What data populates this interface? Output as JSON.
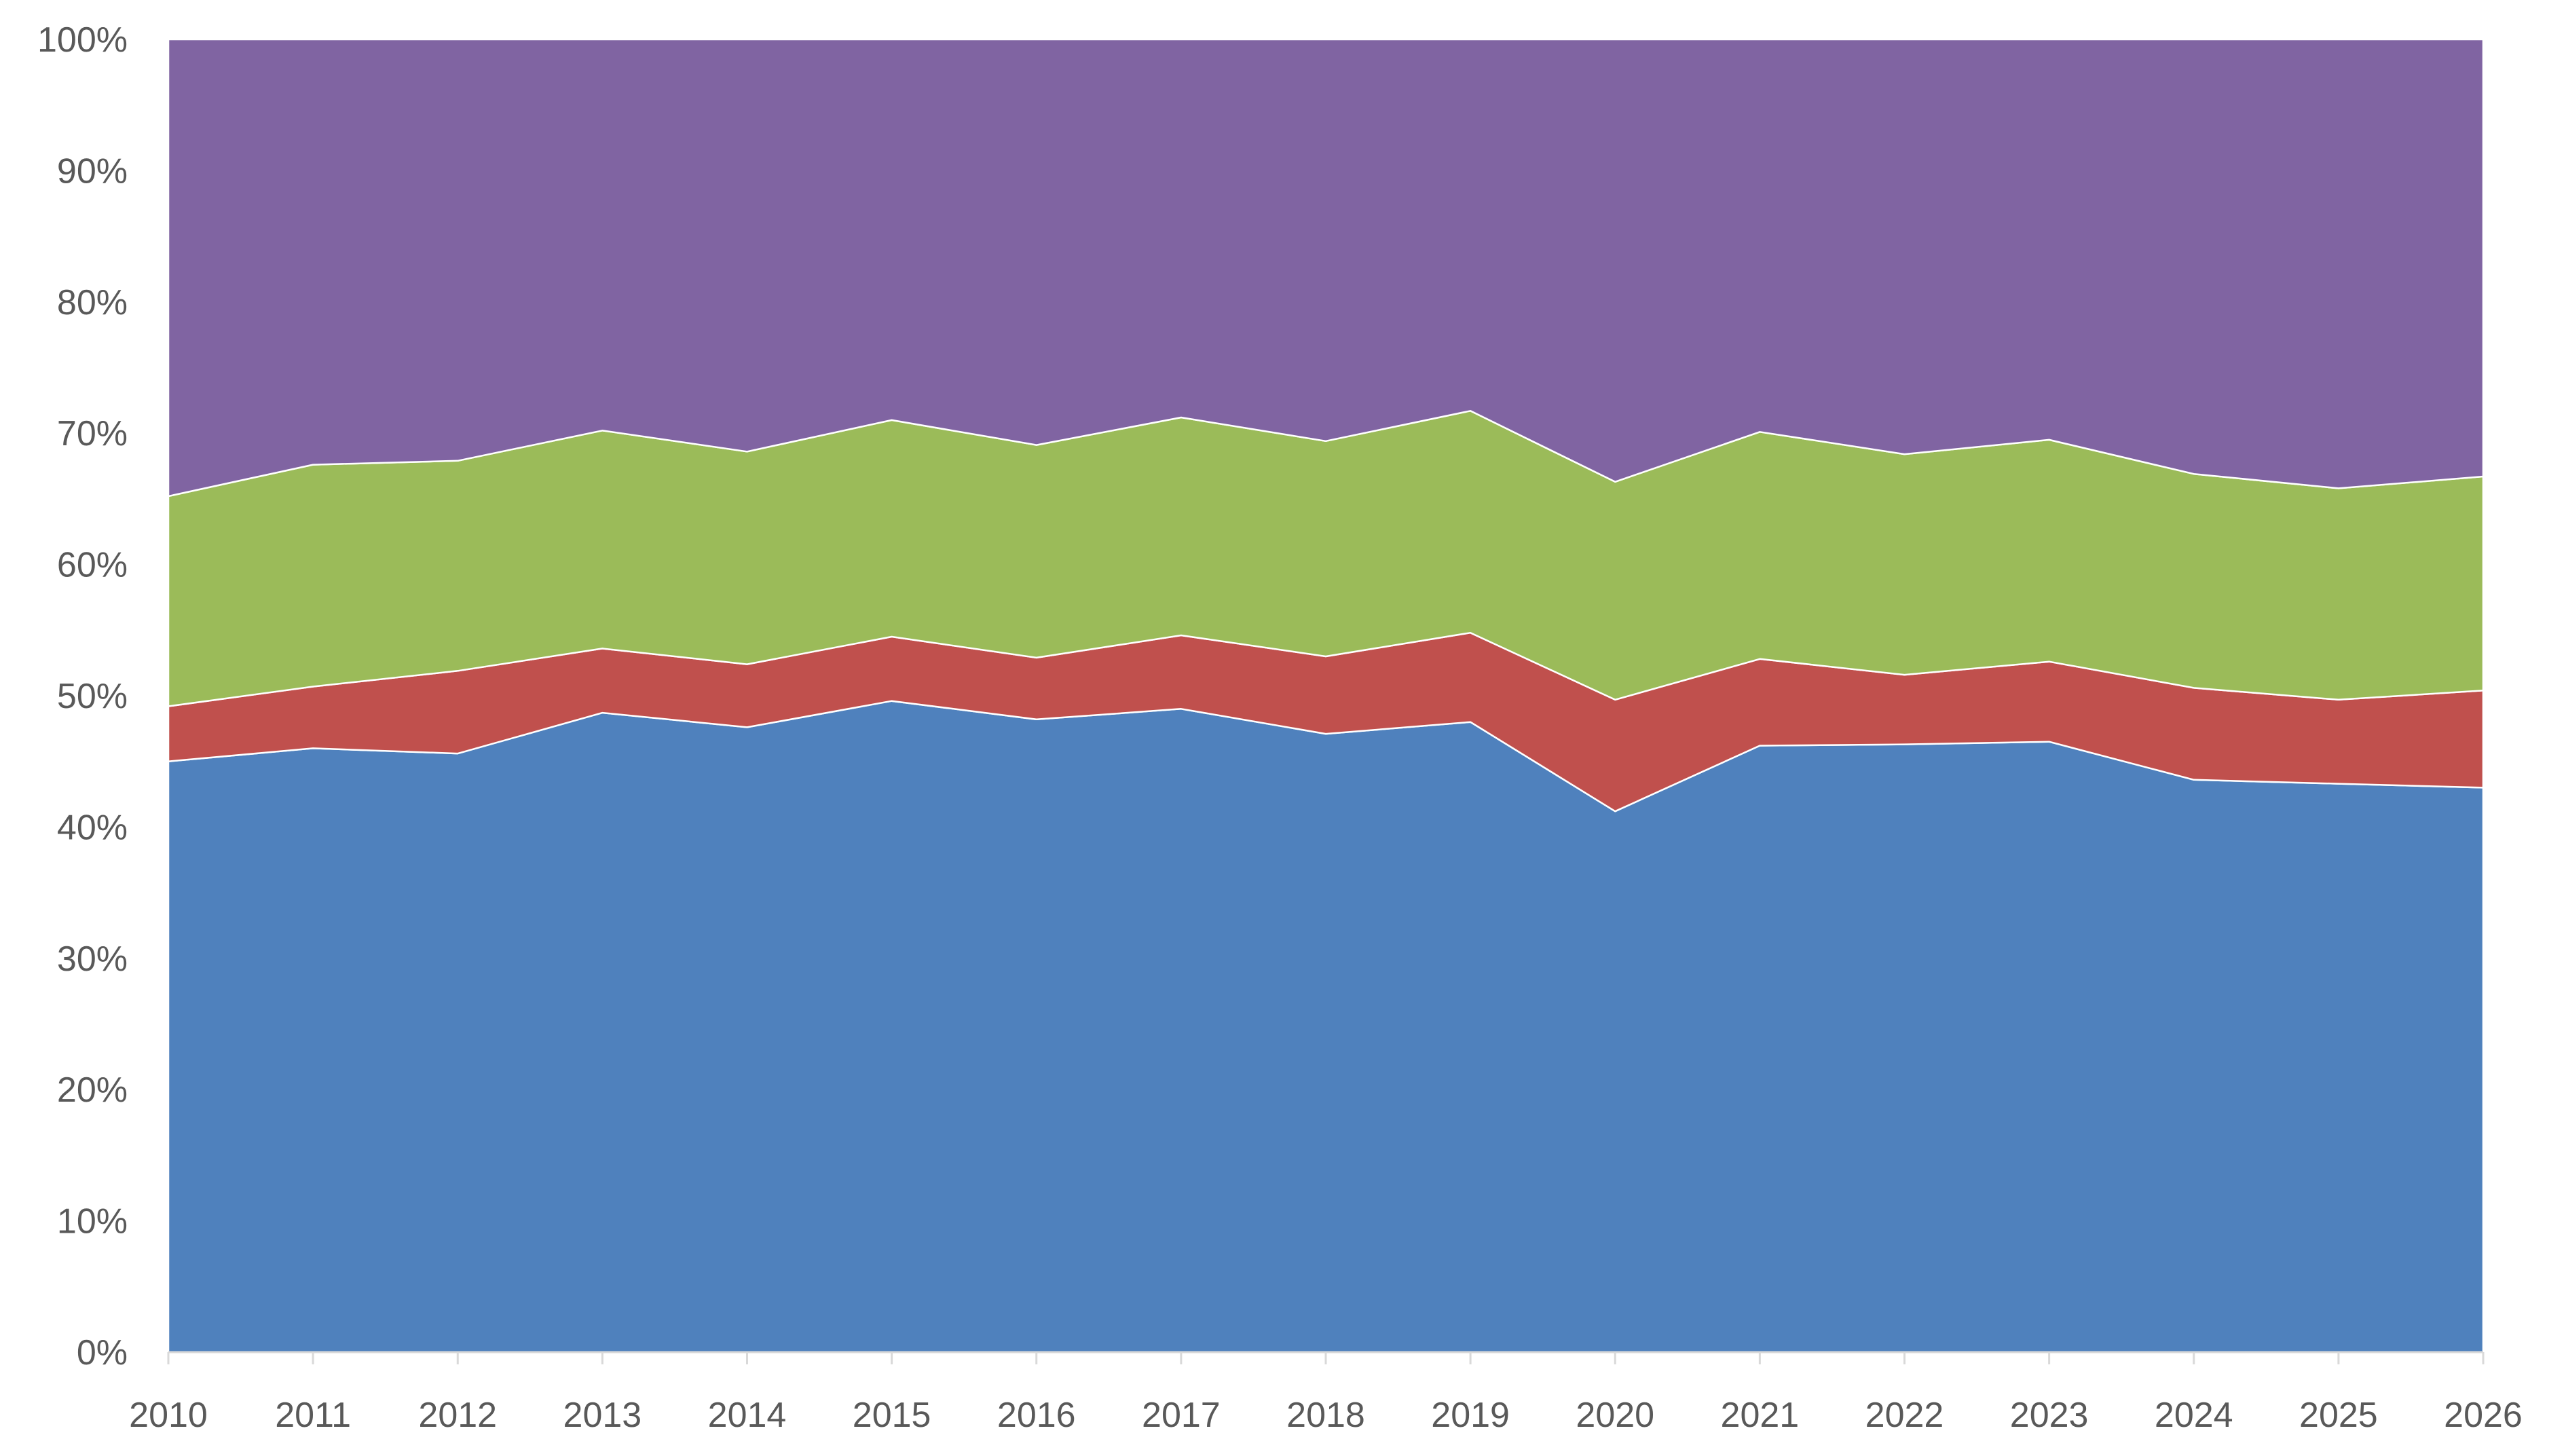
{
  "chart_data": {
    "type": "area",
    "stacked": true,
    "normalized": true,
    "x": [
      "2010",
      "2011",
      "2012",
      "2013",
      "2014",
      "2015",
      "2016",
      "2017",
      "2018",
      "2019",
      "2020",
      "2021",
      "2022",
      "2023",
      "2024",
      "2025",
      "2026"
    ],
    "ylim": [
      0,
      100
    ],
    "y_ticks": [
      "0%",
      "10%",
      "20%",
      "30%",
      "40%",
      "50%",
      "60%",
      "70%",
      "80%",
      "90%",
      "100%"
    ],
    "grid": false,
    "legend": "none",
    "series": [
      {
        "color": "#4f81bd",
        "values": [
          45.0,
          46.0,
          45.6,
          48.7,
          47.6,
          49.6,
          48.2,
          49.0,
          47.1,
          48.0,
          41.2,
          46.2,
          46.3,
          46.5,
          43.6,
          43.3,
          43.0
        ]
      },
      {
        "color": "#c0504d",
        "values": [
          4.2,
          4.7,
          6.3,
          4.9,
          4.8,
          4.9,
          4.7,
          5.6,
          5.9,
          6.8,
          8.5,
          6.6,
          5.3,
          6.1,
          7.0,
          6.4,
          7.4
        ]
      },
      {
        "color": "#9bbb59",
        "values": [
          16.0,
          16.9,
          16.0,
          16.6,
          16.2,
          16.5,
          16.2,
          16.6,
          16.4,
          16.9,
          16.6,
          17.3,
          16.8,
          16.9,
          16.3,
          16.1,
          16.3
        ]
      },
      {
        "color": "#8064a2",
        "values": [
          34.8,
          32.4,
          32.1,
          29.8,
          31.4,
          29.0,
          30.9,
          28.8,
          30.6,
          28.3,
          33.7,
          29.9,
          31.6,
          30.5,
          33.1,
          34.2,
          33.3
        ]
      }
    ]
  }
}
